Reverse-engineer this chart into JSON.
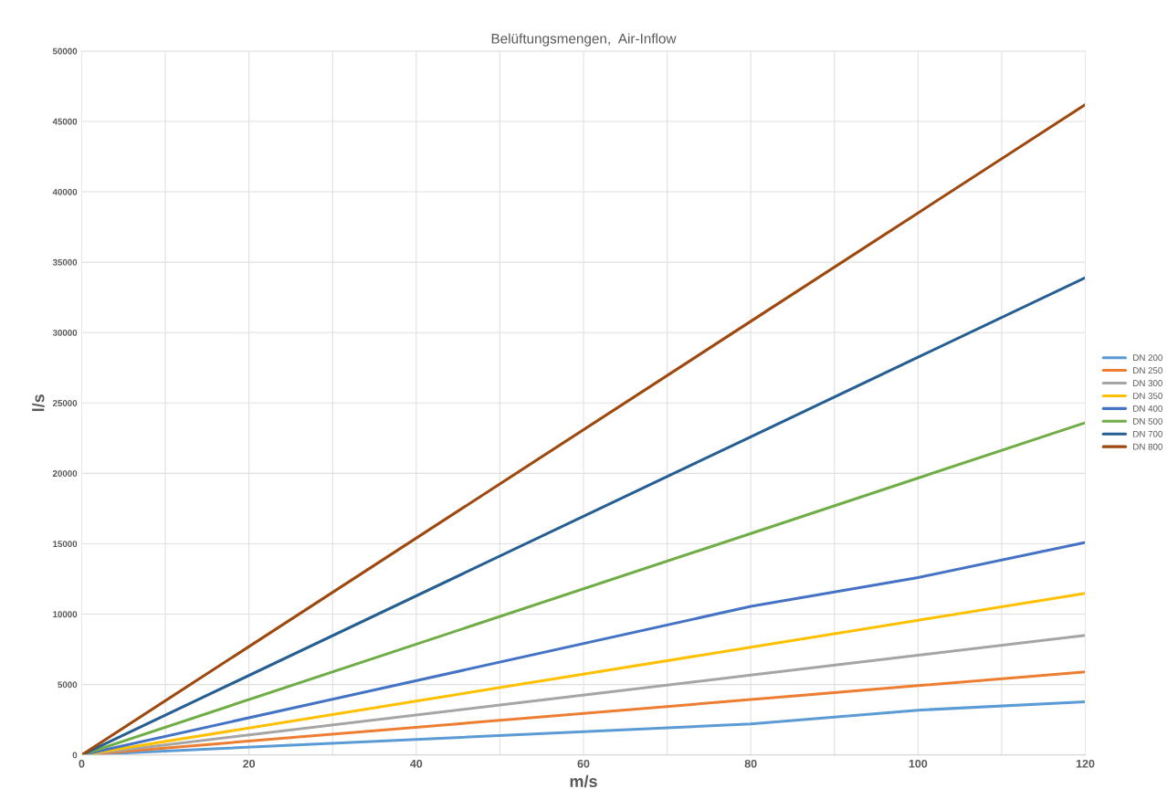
{
  "chart_data": {
    "type": "line",
    "title": "Belüftungsmengen,  Air-Inflow",
    "xlabel": "m/s",
    "ylabel": "l/s",
    "x": [
      0,
      80,
      100,
      120
    ],
    "series": [
      {
        "name": "DN 200",
        "color": "#5b9bd5",
        "values": [
          0,
          2200,
          3180,
          3780
        ]
      },
      {
        "name": "DN 250",
        "color": "#ed7d31",
        "values": [
          0,
          3930,
          4920,
          5900
        ]
      },
      {
        "name": "DN 300",
        "color": "#a5a5a5",
        "values": [
          0,
          5670,
          7080,
          8500
        ]
      },
      {
        "name": "DN 350",
        "color": "#ffc000",
        "values": [
          0,
          7650,
          9570,
          11480
        ]
      },
      {
        "name": "DN 400",
        "color": "#4472c4",
        "values": [
          0,
          10550,
          12600,
          15100
        ]
      },
      {
        "name": "DN 500",
        "color": "#70ad47",
        "values": [
          0,
          15730,
          19670,
          23600
        ]
      },
      {
        "name": "DN 700",
        "color": "#255e91",
        "values": [
          0,
          22600,
          28250,
          33900
        ]
      },
      {
        "name": "DN 800",
        "color": "#9e480e",
        "values": [
          0,
          30800,
          38500,
          46200
        ]
      }
    ],
    "xlim": [
      0,
      120
    ],
    "xticks": [
      0,
      {
        "value": 10,
        "label": null
      },
      20,
      {
        "value": 30,
        "label": null
      },
      40,
      {
        "value": 50,
        "label": null
      },
      60,
      {
        "value": 70,
        "label": null
      },
      80,
      {
        "value": 90,
        "label": null
      },
      100,
      {
        "value": 110,
        "label": null
      },
      120
    ],
    "ylim": [
      0,
      50000
    ],
    "yticks": [
      0,
      5000,
      10000,
      15000,
      20000,
      25000,
      30000,
      35000,
      40000,
      45000,
      50000
    ],
    "grid": true,
    "legend": "right",
    "marker": "none",
    "line_style": "solid"
  }
}
